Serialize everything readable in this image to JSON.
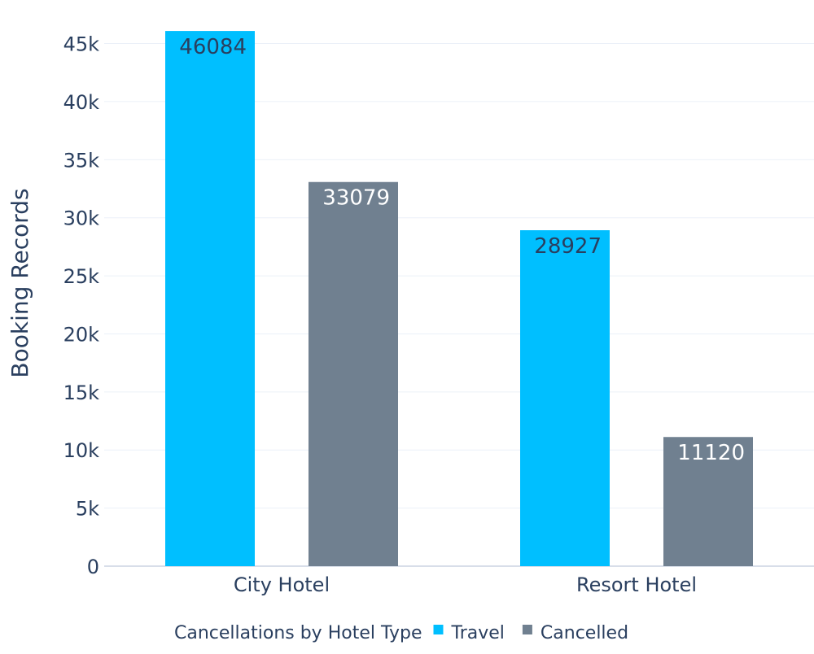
{
  "chart_data": {
    "type": "bar",
    "title": "",
    "xlabel": "",
    "ylabel": "Booking Records",
    "categories": [
      "City Hotel",
      "Resort Hotel"
    ],
    "series": [
      {
        "name": "Travel",
        "color": "#00bfff",
        "label_color": "#2a3f5f",
        "values": [
          46084,
          28927
        ]
      },
      {
        "name": "Cancelled",
        "color": "#708090",
        "label_color": "#ffffff",
        "values": [
          33079,
          11120
        ]
      }
    ],
    "ylim": [
      0,
      47000
    ],
    "yticks": [
      0,
      5000,
      10000,
      15000,
      20000,
      25000,
      30000,
      35000,
      40000,
      45000
    ],
    "ytick_labels": [
      "0",
      "5k",
      "10k",
      "15k",
      "20k",
      "25k",
      "30k",
      "35k",
      "40k",
      "45k"
    ],
    "grid": true,
    "legend": {
      "title": "Cancellations by Hotel Type",
      "placement": "bottom-center"
    },
    "text_color": "#2a3f5f",
    "grid_color": "#ebf0f8"
  }
}
